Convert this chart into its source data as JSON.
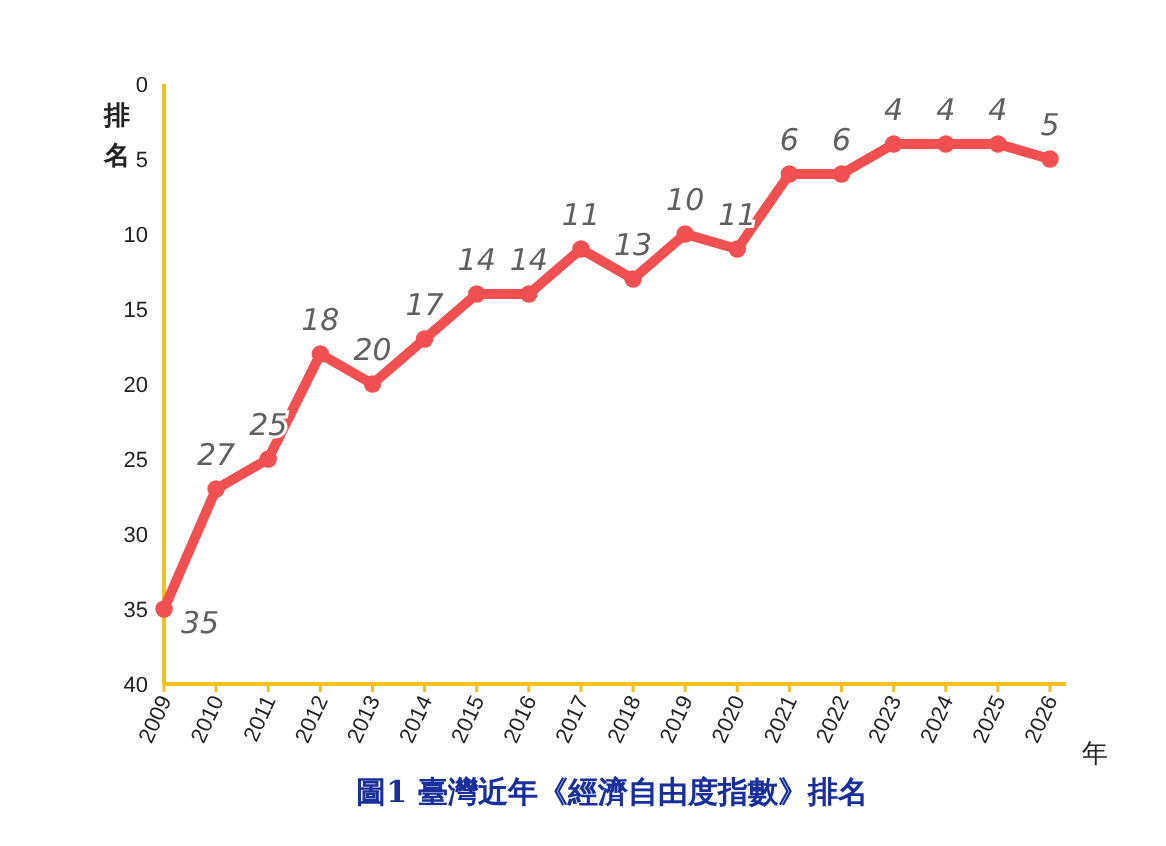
{
  "chart_data": {
    "type": "line",
    "title": "圖1 臺灣近年《經濟自由度指數》排名",
    "ylabel": "排名",
    "xlabel": "年",
    "categories": [
      "2009",
      "2010",
      "2011",
      "2012",
      "2013",
      "2014",
      "2015",
      "2016",
      "2017",
      "2018",
      "2019",
      "2020",
      "2021",
      "2022",
      "2023",
      "2024",
      "2025",
      "2026"
    ],
    "series": [
      {
        "color": "#f05050",
        "values": [
          35,
          27,
          25,
          18,
          20,
          17,
          14,
          14,
          11,
          13,
          10,
          11,
          6,
          6,
          4,
          4,
          4,
          5
        ]
      }
    ],
    "ylim": [
      40,
      0
    ],
    "yticks": [
      0,
      5,
      10,
      15,
      20,
      25,
      30,
      35,
      40
    ],
    "marker": "circle",
    "data_labels": true,
    "grid": false
  }
}
